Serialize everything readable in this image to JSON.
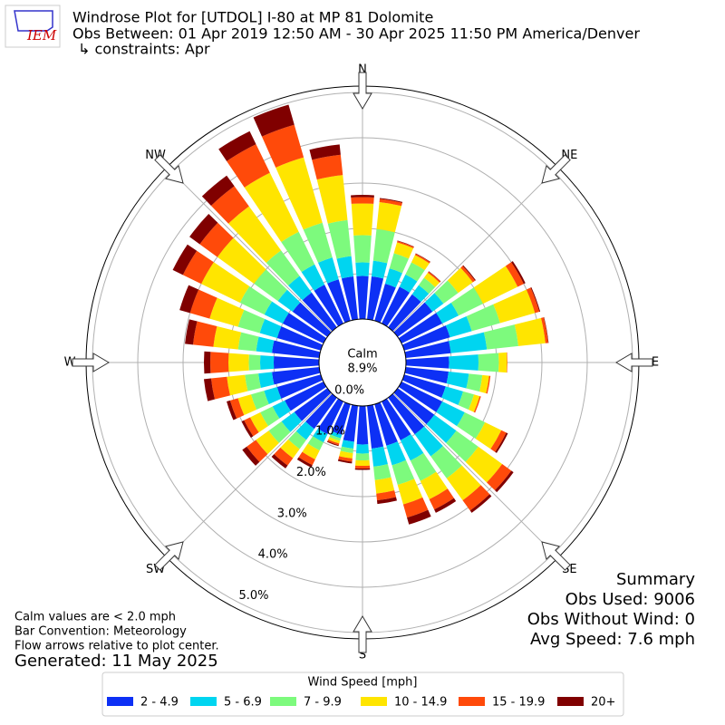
{
  "chart_data": {
    "type": "windrose",
    "logo_text": "IEM",
    "title": "Windrose Plot for [UTDOL] I-80 at MP 81 Dolomite",
    "subtitle": "Obs Between: 01 Apr 2019 12:50 AM - 30 Apr 2025 11:50 PM America/Denver",
    "constraints": "↳ constraints: Apr",
    "directions": [
      "N",
      "NE",
      "E",
      "SE",
      "S",
      "SW",
      "W",
      "NW"
    ],
    "calm": {
      "label": "Calm",
      "value": 8.9,
      "value_label": "8.9%"
    },
    "rlim": [
      0,
      5.14
    ],
    "rticks": [
      {
        "value": 0,
        "label": "0.0%"
      },
      {
        "value": 1,
        "label": "1.0%"
      },
      {
        "value": 2,
        "label": "2.0%"
      },
      {
        "value": 3,
        "label": "3.0%"
      },
      {
        "value": 4,
        "label": "4.0%"
      },
      {
        "value": 5,
        "label": "5.0%"
      }
    ],
    "legend_title": "Wind Speed [mph]",
    "series": [
      {
        "name": "2 - 4.9",
        "color": "#0d30f5",
        "values": [
          0.95,
          0.95,
          0.85,
          0.9,
          0.9,
          0.95,
          1.0,
          1.05,
          1.0,
          0.95,
          0.95,
          0.95,
          1.0,
          1.0,
          1.0,
          0.95,
          0.95,
          0.95,
          0.85,
          0.8,
          0.7,
          0.8,
          0.85,
          0.9,
          0.95,
          1.0,
          1.05,
          1.0,
          1.05,
          1.0,
          1.0,
          0.95,
          0.95,
          0.95,
          0.95,
          0.95
        ]
      },
      {
        "name": "5 - 6.9",
        "color": "#00d5f0",
        "values": [
          0.3,
          0.35,
          0.35,
          0.3,
          0.25,
          0.3,
          0.4,
          0.5,
          0.8,
          0.65,
          0.45,
          0.4,
          0.55,
          0.6,
          0.6,
          0.5,
          0.45,
          0.4,
          0.2,
          0.15,
          0.08,
          0.2,
          0.3,
          0.35,
          0.3,
          0.3,
          0.3,
          0.3,
          0.35,
          0.4,
          0.45,
          0.4,
          0.45,
          0.5,
          0.5,
          0.45
        ]
      },
      {
        "name": "7 - 9.9",
        "color": "#7dfa7d",
        "values": [
          0.6,
          0.7,
          0.35,
          0.3,
          0.2,
          0.4,
          0.6,
          0.65,
          0.7,
          0.45,
          0.3,
          0.25,
          0.5,
          0.6,
          0.6,
          0.5,
          0.45,
          0.3,
          0.15,
          0.1,
          0.06,
          0.2,
          0.25,
          0.35,
          0.3,
          0.3,
          0.3,
          0.25,
          0.4,
          0.5,
          0.6,
          0.65,
          0.7,
          0.8,
          0.8,
          0.8
        ]
      },
      {
        "name": "10 - 14.9",
        "color": "#ffe500",
        "values": [
          0.7,
          0.6,
          0.25,
          0.18,
          0.14,
          0.4,
          0.85,
          0.8,
          0.6,
          0.18,
          0.15,
          0.13,
          0.4,
          0.65,
          0.6,
          0.45,
          0.45,
          0.3,
          0.12,
          0.12,
          0.06,
          0.22,
          0.25,
          0.35,
          0.25,
          0.3,
          0.4,
          0.45,
          0.55,
          0.65,
          0.95,
          1.0,
          1.2,
          1.45,
          1.5,
          1.0
        ]
      },
      {
        "name": "15 - 19.9",
        "color": "#ff4a0a",
        "values": [
          0.14,
          0.07,
          0.03,
          0.03,
          0.03,
          0.06,
          0.15,
          0.1,
          0.06,
          0.01,
          0.03,
          0.03,
          0.12,
          0.25,
          0.28,
          0.25,
          0.3,
          0.15,
          0.06,
          0.07,
          0.04,
          0.14,
          0.2,
          0.25,
          0.15,
          0.18,
          0.35,
          0.4,
          0.45,
          0.45,
          0.45,
          0.48,
          0.55,
          0.7,
          0.75,
          0.45
        ]
      },
      {
        "name": "20+",
        "color": "#800000",
        "values": [
          0.05,
          0.02,
          0.01,
          0.01,
          0.01,
          0.02,
          0.04,
          0.02,
          0.01,
          0.0,
          0.0,
          0.0,
          0.04,
          0.06,
          0.06,
          0.08,
          0.16,
          0.08,
          0.03,
          0.04,
          0.02,
          0.06,
          0.08,
          0.12,
          0.06,
          0.08,
          0.16,
          0.14,
          0.18,
          0.24,
          0.25,
          0.28,
          0.29,
          0.32,
          0.46,
          0.23
        ]
      }
    ],
    "notes": [
      "Calm values are < 2.0 mph",
      "Bar Convention: Meteorology",
      "Flow arrows relative to plot center."
    ],
    "generated": "Generated: 11 May 2025",
    "summary": [
      "Summary",
      "Obs Used: 9006",
      "Obs Without Wind: 0",
      "Avg Speed: 7.6 mph"
    ]
  }
}
